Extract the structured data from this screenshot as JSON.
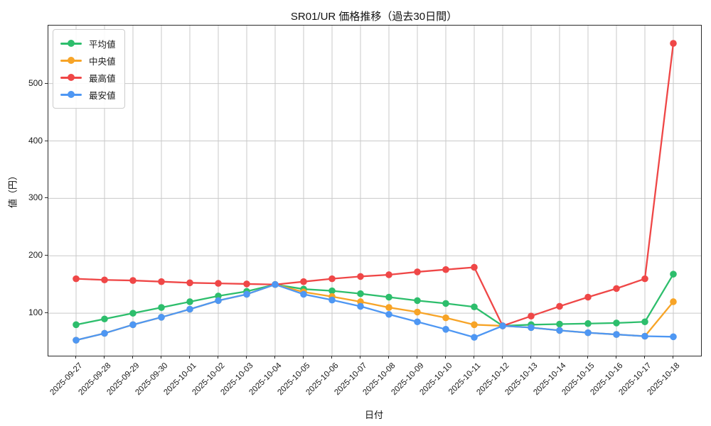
{
  "chart_data": {
    "type": "line",
    "title": "SR01/UR 価格推移（過去30日間）",
    "xlabel": "日付",
    "ylabel": "値（円）",
    "x": [
      "2025-09-27",
      "2025-09-28",
      "2025-09-29",
      "2025-09-30",
      "2025-10-01",
      "2025-10-02",
      "2025-10-03",
      "2025-10-04",
      "2025-10-05",
      "2025-10-06",
      "2025-10-07",
      "2025-10-08",
      "2025-10-09",
      "2025-10-10",
      "2025-10-11",
      "2025-10-12",
      "2025-10-13",
      "2025-10-14",
      "2025-10-15",
      "2025-10-16",
      "2025-10-17",
      "2025-10-18"
    ],
    "series": [
      {
        "key": "avg",
        "name": "平均値",
        "color": "#2dbe6c",
        "values": [
          80,
          90,
          100,
          110,
          120,
          130,
          138,
          150,
          142,
          139,
          134,
          128,
          122,
          117,
          111,
          78,
          80,
          81,
          82,
          83,
          85,
          168
        ]
      },
      {
        "key": "median",
        "name": "中央値",
        "color": "#f7a427",
        "values": [
          53,
          65,
          80,
          93,
          107,
          122,
          133,
          150,
          137,
          129,
          120,
          110,
          102,
          92,
          80,
          78,
          75,
          70,
          66,
          63,
          60,
          120
        ]
      },
      {
        "key": "max",
        "name": "最高値",
        "color": "#ef4747",
        "values": [
          160,
          158,
          157,
          155,
          153,
          152,
          151,
          150,
          155,
          160,
          164,
          167,
          172,
          176,
          180,
          78,
          95,
          112,
          128,
          143,
          160,
          570
        ]
      },
      {
        "key": "min",
        "name": "最安値",
        "color": "#4e97f3",
        "values": [
          53,
          65,
          80,
          93,
          107,
          122,
          133,
          150,
          133,
          123,
          112,
          98,
          85,
          72,
          58,
          78,
          75,
          70,
          66,
          63,
          60,
          59
        ]
      }
    ],
    "ylim": [
      26,
      601
    ],
    "yticks": [
      100,
      200,
      300,
      400,
      500
    ],
    "grid": true,
    "grid_color": "#c9c9c9",
    "legend_position": "upper left"
  }
}
